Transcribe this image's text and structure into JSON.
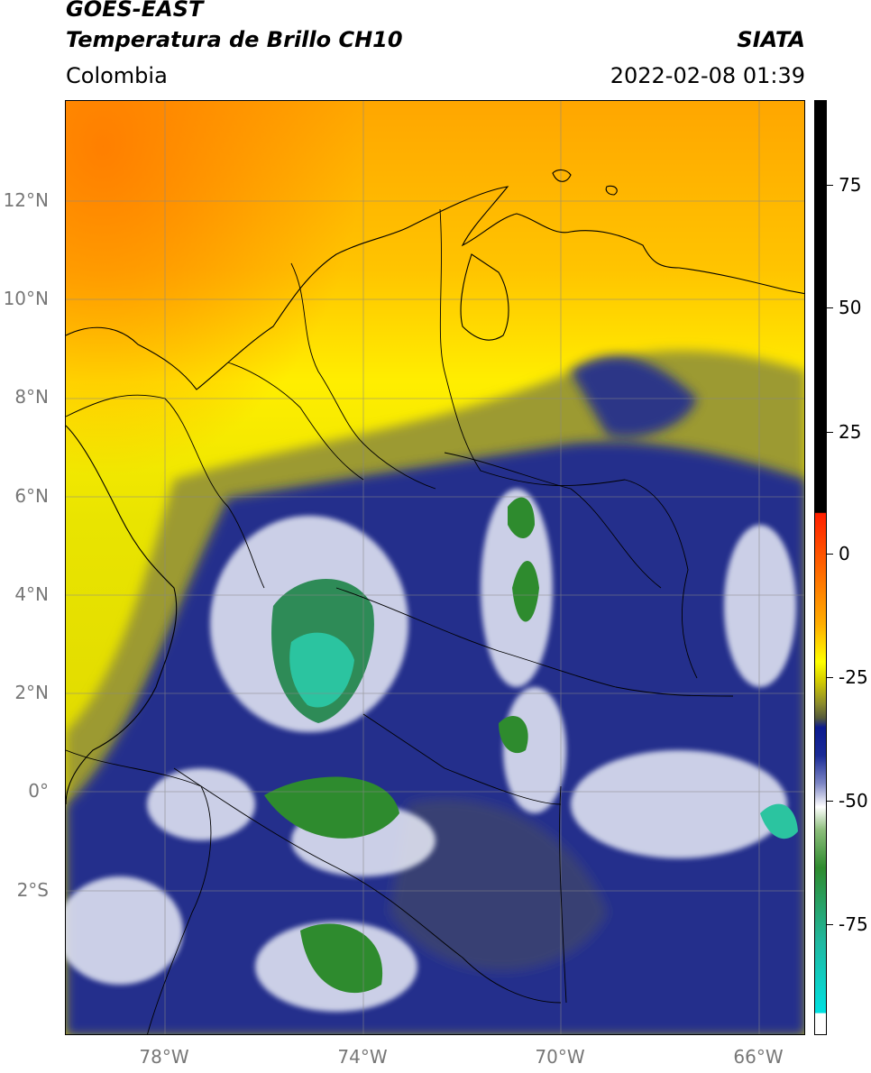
{
  "header": {
    "title_line1": "GOES-EAST",
    "title_line2": "Temperatura de Brillo CH10",
    "brand": "SIATA",
    "region": "Colombia",
    "datetime": "2022-02-08 01:39"
  },
  "map": {
    "projection": "PlateCarree",
    "lon_range": [
      -80,
      -65.05
    ],
    "lat_range": [
      -4.2,
      14.0
    ],
    "lat_ticks": [
      "12°N",
      "10°N",
      "8°N",
      "6°N",
      "4°N",
      "2°N",
      "0°",
      "2°S"
    ],
    "lon_ticks": [
      "78°W",
      "74°W",
      "70°W",
      "66°W"
    ],
    "gridlines": true,
    "grid_color": "#888888",
    "background_warm": "#ffb300",
    "background_cool": "#f3ed00"
  },
  "colorbar": {
    "labels": [
      "75",
      "50",
      "25",
      "0",
      "-25",
      "-50",
      "-75"
    ],
    "range": [
      -95,
      90
    ],
    "colors": {
      "black": "#000000",
      "red": "#ff1f00",
      "orange": "#ff8a00",
      "yellow": "#ffff00",
      "olive": "#8a8a2c",
      "navy": "#0b1a8f",
      "white": "#ffffff",
      "green": "#2e8b2e",
      "cyan": "#00e0e0"
    }
  }
}
